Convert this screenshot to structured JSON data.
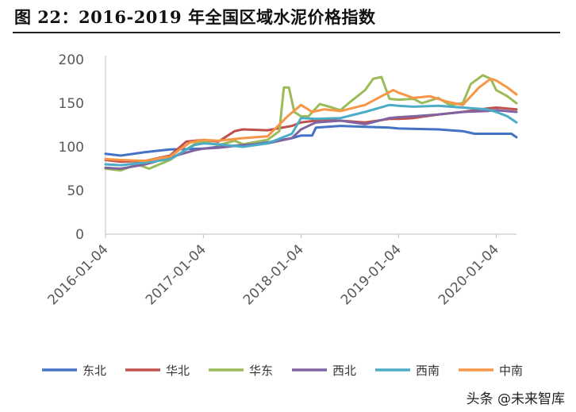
{
  "figure": {
    "title": "图 22：2016-2019 年全国区域水泥价格指数",
    "watermark": "头条 @未来智库"
  },
  "chart_data": {
    "type": "line",
    "title": "图 22：2016-2019 年全国区域水泥价格指数",
    "xlabel": "",
    "ylabel": "",
    "ylim": [
      0,
      200
    ],
    "yticks": [
      0,
      50,
      100,
      150,
      200
    ],
    "xticks": [
      "2016-01-04",
      "2017-01-04",
      "2018-01-04",
      "2019-01-04",
      "2020-01-04"
    ],
    "grid": false,
    "legend_position": "bottom",
    "series": [
      {
        "name": "东北",
        "color": "#4472c4",
        "points": [
          [
            "2016-01-04",
            92
          ],
          [
            "2016-03-01",
            90
          ],
          [
            "2016-06-01",
            94
          ],
          [
            "2016-09-01",
            97
          ],
          [
            "2017-01-04",
            98
          ],
          [
            "2017-03-01",
            100
          ],
          [
            "2017-06-01",
            102
          ],
          [
            "2017-09-01",
            105
          ],
          [
            "2017-12-01",
            110
          ],
          [
            "2018-01-04",
            113
          ],
          [
            "2018-02-15",
            113
          ],
          [
            "2018-03-01",
            122
          ],
          [
            "2018-06-01",
            124
          ],
          [
            "2018-09-01",
            123
          ],
          [
            "2018-12-01",
            122
          ],
          [
            "2019-01-04",
            121
          ],
          [
            "2019-06-01",
            120
          ],
          [
            "2019-09-01",
            118
          ],
          [
            "2019-10-15",
            115
          ],
          [
            "2020-01-04",
            115
          ],
          [
            "2020-03-01",
            115
          ],
          [
            "2020-03-20",
            111
          ]
        ]
      },
      {
        "name": "华北",
        "color": "#c0504d",
        "points": [
          [
            "2016-01-04",
            85
          ],
          [
            "2016-03-01",
            83
          ],
          [
            "2016-06-01",
            84
          ],
          [
            "2016-09-01",
            90
          ],
          [
            "2016-11-01",
            106
          ],
          [
            "2017-01-04",
            108
          ],
          [
            "2017-03-01",
            106
          ],
          [
            "2017-05-01",
            118
          ],
          [
            "2017-06-01",
            120
          ],
          [
            "2017-09-01",
            119
          ],
          [
            "2017-12-01",
            124
          ],
          [
            "2018-01-04",
            128
          ],
          [
            "2018-03-01",
            130
          ],
          [
            "2018-06-01",
            130
          ],
          [
            "2018-09-01",
            128
          ],
          [
            "2018-12-01",
            132
          ],
          [
            "2019-01-04",
            132
          ],
          [
            "2019-03-01",
            133
          ],
          [
            "2019-06-01",
            137
          ],
          [
            "2019-09-01",
            140
          ],
          [
            "2019-12-01",
            144
          ],
          [
            "2020-01-04",
            145
          ],
          [
            "2020-03-20",
            143
          ]
        ]
      },
      {
        "name": "华东",
        "color": "#9bbb59",
        "points": [
          [
            "2016-01-04",
            75
          ],
          [
            "2016-03-01",
            73
          ],
          [
            "2016-05-01",
            80
          ],
          [
            "2016-06-15",
            75
          ],
          [
            "2016-09-01",
            85
          ],
          [
            "2016-12-01",
            103
          ],
          [
            "2017-01-04",
            106
          ],
          [
            "2017-03-01",
            102
          ],
          [
            "2017-05-01",
            107
          ],
          [
            "2017-06-01",
            103
          ],
          [
            "2017-09-01",
            108
          ],
          [
            "2017-10-15",
            118
          ],
          [
            "2017-11-01",
            168
          ],
          [
            "2017-11-20",
            168
          ],
          [
            "2017-12-10",
            140
          ],
          [
            "2018-01-04",
            135
          ],
          [
            "2018-02-01",
            135
          ],
          [
            "2018-03-15",
            149
          ],
          [
            "2018-05-01",
            145
          ],
          [
            "2018-06-01",
            142
          ],
          [
            "2018-07-01",
            150
          ],
          [
            "2018-09-01",
            165
          ],
          [
            "2018-10-01",
            178
          ],
          [
            "2018-11-01",
            180
          ],
          [
            "2018-12-01",
            155
          ],
          [
            "2019-01-04",
            154
          ],
          [
            "2019-03-01",
            155
          ],
          [
            "2019-04-01",
            150
          ],
          [
            "2019-06-01",
            156
          ],
          [
            "2019-07-15",
            148
          ],
          [
            "2019-09-01",
            150
          ],
          [
            "2019-10-01",
            172
          ],
          [
            "2019-11-15",
            182
          ],
          [
            "2019-12-15",
            178
          ],
          [
            "2020-01-04",
            165
          ],
          [
            "2020-02-15",
            158
          ],
          [
            "2020-03-20",
            150
          ]
        ]
      },
      {
        "name": "西北",
        "color": "#8064a2",
        "points": [
          [
            "2016-01-04",
            76
          ],
          [
            "2016-03-01",
            75
          ],
          [
            "2016-06-01",
            80
          ],
          [
            "2016-09-01",
            88
          ],
          [
            "2016-12-01",
            96
          ],
          [
            "2017-01-04",
            98
          ],
          [
            "2017-03-01",
            99
          ],
          [
            "2017-06-01",
            102
          ],
          [
            "2017-09-01",
            104
          ],
          [
            "2017-12-01",
            110
          ],
          [
            "2018-01-04",
            120
          ],
          [
            "2018-03-01",
            128
          ],
          [
            "2018-06-01",
            130
          ],
          [
            "2018-09-01",
            126
          ],
          [
            "2018-12-01",
            133
          ],
          [
            "2019-01-04",
            134
          ],
          [
            "2019-03-01",
            135
          ],
          [
            "2019-06-01",
            137
          ],
          [
            "2019-09-01",
            140
          ],
          [
            "2019-12-01",
            141
          ],
          [
            "2020-01-04",
            142
          ],
          [
            "2020-03-20",
            140
          ]
        ]
      },
      {
        "name": "西南",
        "color": "#4bacc6",
        "points": [
          [
            "2016-01-04",
            80
          ],
          [
            "2016-03-01",
            79
          ],
          [
            "2016-06-01",
            82
          ],
          [
            "2016-09-01",
            86
          ],
          [
            "2016-12-01",
            102
          ],
          [
            "2017-01-04",
            104
          ],
          [
            "2017-03-01",
            103
          ],
          [
            "2017-06-01",
            100
          ],
          [
            "2017-09-01",
            104
          ],
          [
            "2017-12-01",
            115
          ],
          [
            "2018-01-04",
            133
          ],
          [
            "2018-03-01",
            132
          ],
          [
            "2018-06-01",
            133
          ],
          [
            "2018-09-01",
            140
          ],
          [
            "2018-12-01",
            148
          ],
          [
            "2019-01-04",
            147
          ],
          [
            "2019-03-01",
            146
          ],
          [
            "2019-06-01",
            147
          ],
          [
            "2019-09-01",
            145
          ],
          [
            "2019-12-01",
            143
          ],
          [
            "2020-01-04",
            140
          ],
          [
            "2020-02-15",
            135
          ],
          [
            "2020-03-20",
            128
          ]
        ]
      },
      {
        "name": "中南",
        "color": "#f79646",
        "points": [
          [
            "2016-01-04",
            86
          ],
          [
            "2016-03-01",
            85
          ],
          [
            "2016-06-01",
            84
          ],
          [
            "2016-09-01",
            89
          ],
          [
            "2016-11-15",
            105
          ],
          [
            "2017-01-04",
            108
          ],
          [
            "2017-03-01",
            107
          ],
          [
            "2017-06-01",
            110
          ],
          [
            "2017-09-01",
            112
          ],
          [
            "2017-11-15",
            135
          ],
          [
            "2018-01-04",
            148
          ],
          [
            "2018-02-15",
            140
          ],
          [
            "2018-04-01",
            143
          ],
          [
            "2018-06-01",
            141
          ],
          [
            "2018-09-01",
            148
          ],
          [
            "2018-11-01",
            158
          ],
          [
            "2018-12-15",
            165
          ],
          [
            "2019-01-04",
            162
          ],
          [
            "2019-03-01",
            156
          ],
          [
            "2019-05-01",
            158
          ],
          [
            "2019-07-01",
            152
          ],
          [
            "2019-09-01",
            148
          ],
          [
            "2019-11-01",
            168
          ],
          [
            "2019-12-15",
            178
          ],
          [
            "2020-01-04",
            176
          ],
          [
            "2020-02-15",
            168
          ],
          [
            "2020-03-20",
            160
          ]
        ]
      }
    ]
  }
}
